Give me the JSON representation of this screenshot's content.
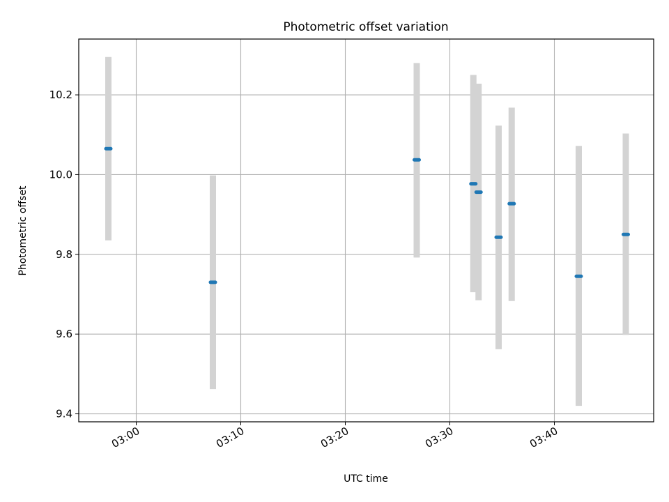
{
  "chart_data": {
    "type": "scatter",
    "title": "Photometric offset variation",
    "xlabel": "UTC time",
    "ylabel": "Photometric offset",
    "x_unit": "UTC time (HH:MM)",
    "xlim": [
      "02:54:30",
      "03:49:30"
    ],
    "ylim": [
      9.38,
      10.34
    ],
    "x_ticks": [
      "03:00",
      "03:10",
      "03:20",
      "03:30",
      "03:40"
    ],
    "y_ticks": [
      9.4,
      9.6,
      9.8,
      10.0,
      10.2
    ],
    "y_tick_labels": [
      "9.4",
      "9.6",
      "9.8",
      "10.0",
      "10.2"
    ],
    "grid": true,
    "marker_color": "#1f77b4",
    "errorbar_color": "#d3d3d3",
    "points": [
      {
        "x": "02:57:20",
        "y": 10.065,
        "ylow": 9.835,
        "yhigh": 10.295
      },
      {
        "x": "03:07:20",
        "y": 9.73,
        "ylow": 9.462,
        "yhigh": 9.998
      },
      {
        "x": "03:26:50",
        "y": 10.037,
        "ylow": 9.792,
        "yhigh": 10.28
      },
      {
        "x": "03:32:15",
        "y": 9.977,
        "ylow": 9.705,
        "yhigh": 10.25
      },
      {
        "x": "03:32:45",
        "y": 9.956,
        "ylow": 9.685,
        "yhigh": 10.228
      },
      {
        "x": "03:34:40",
        "y": 9.843,
        "ylow": 9.562,
        "yhigh": 10.123
      },
      {
        "x": "03:35:55",
        "y": 9.927,
        "ylow": 9.683,
        "yhigh": 10.168
      },
      {
        "x": "03:42:20",
        "y": 9.745,
        "ylow": 9.42,
        "yhigh": 10.072
      },
      {
        "x": "03:46:50",
        "y": 9.85,
        "ylow": 9.598,
        "yhigh": 10.103
      }
    ]
  }
}
